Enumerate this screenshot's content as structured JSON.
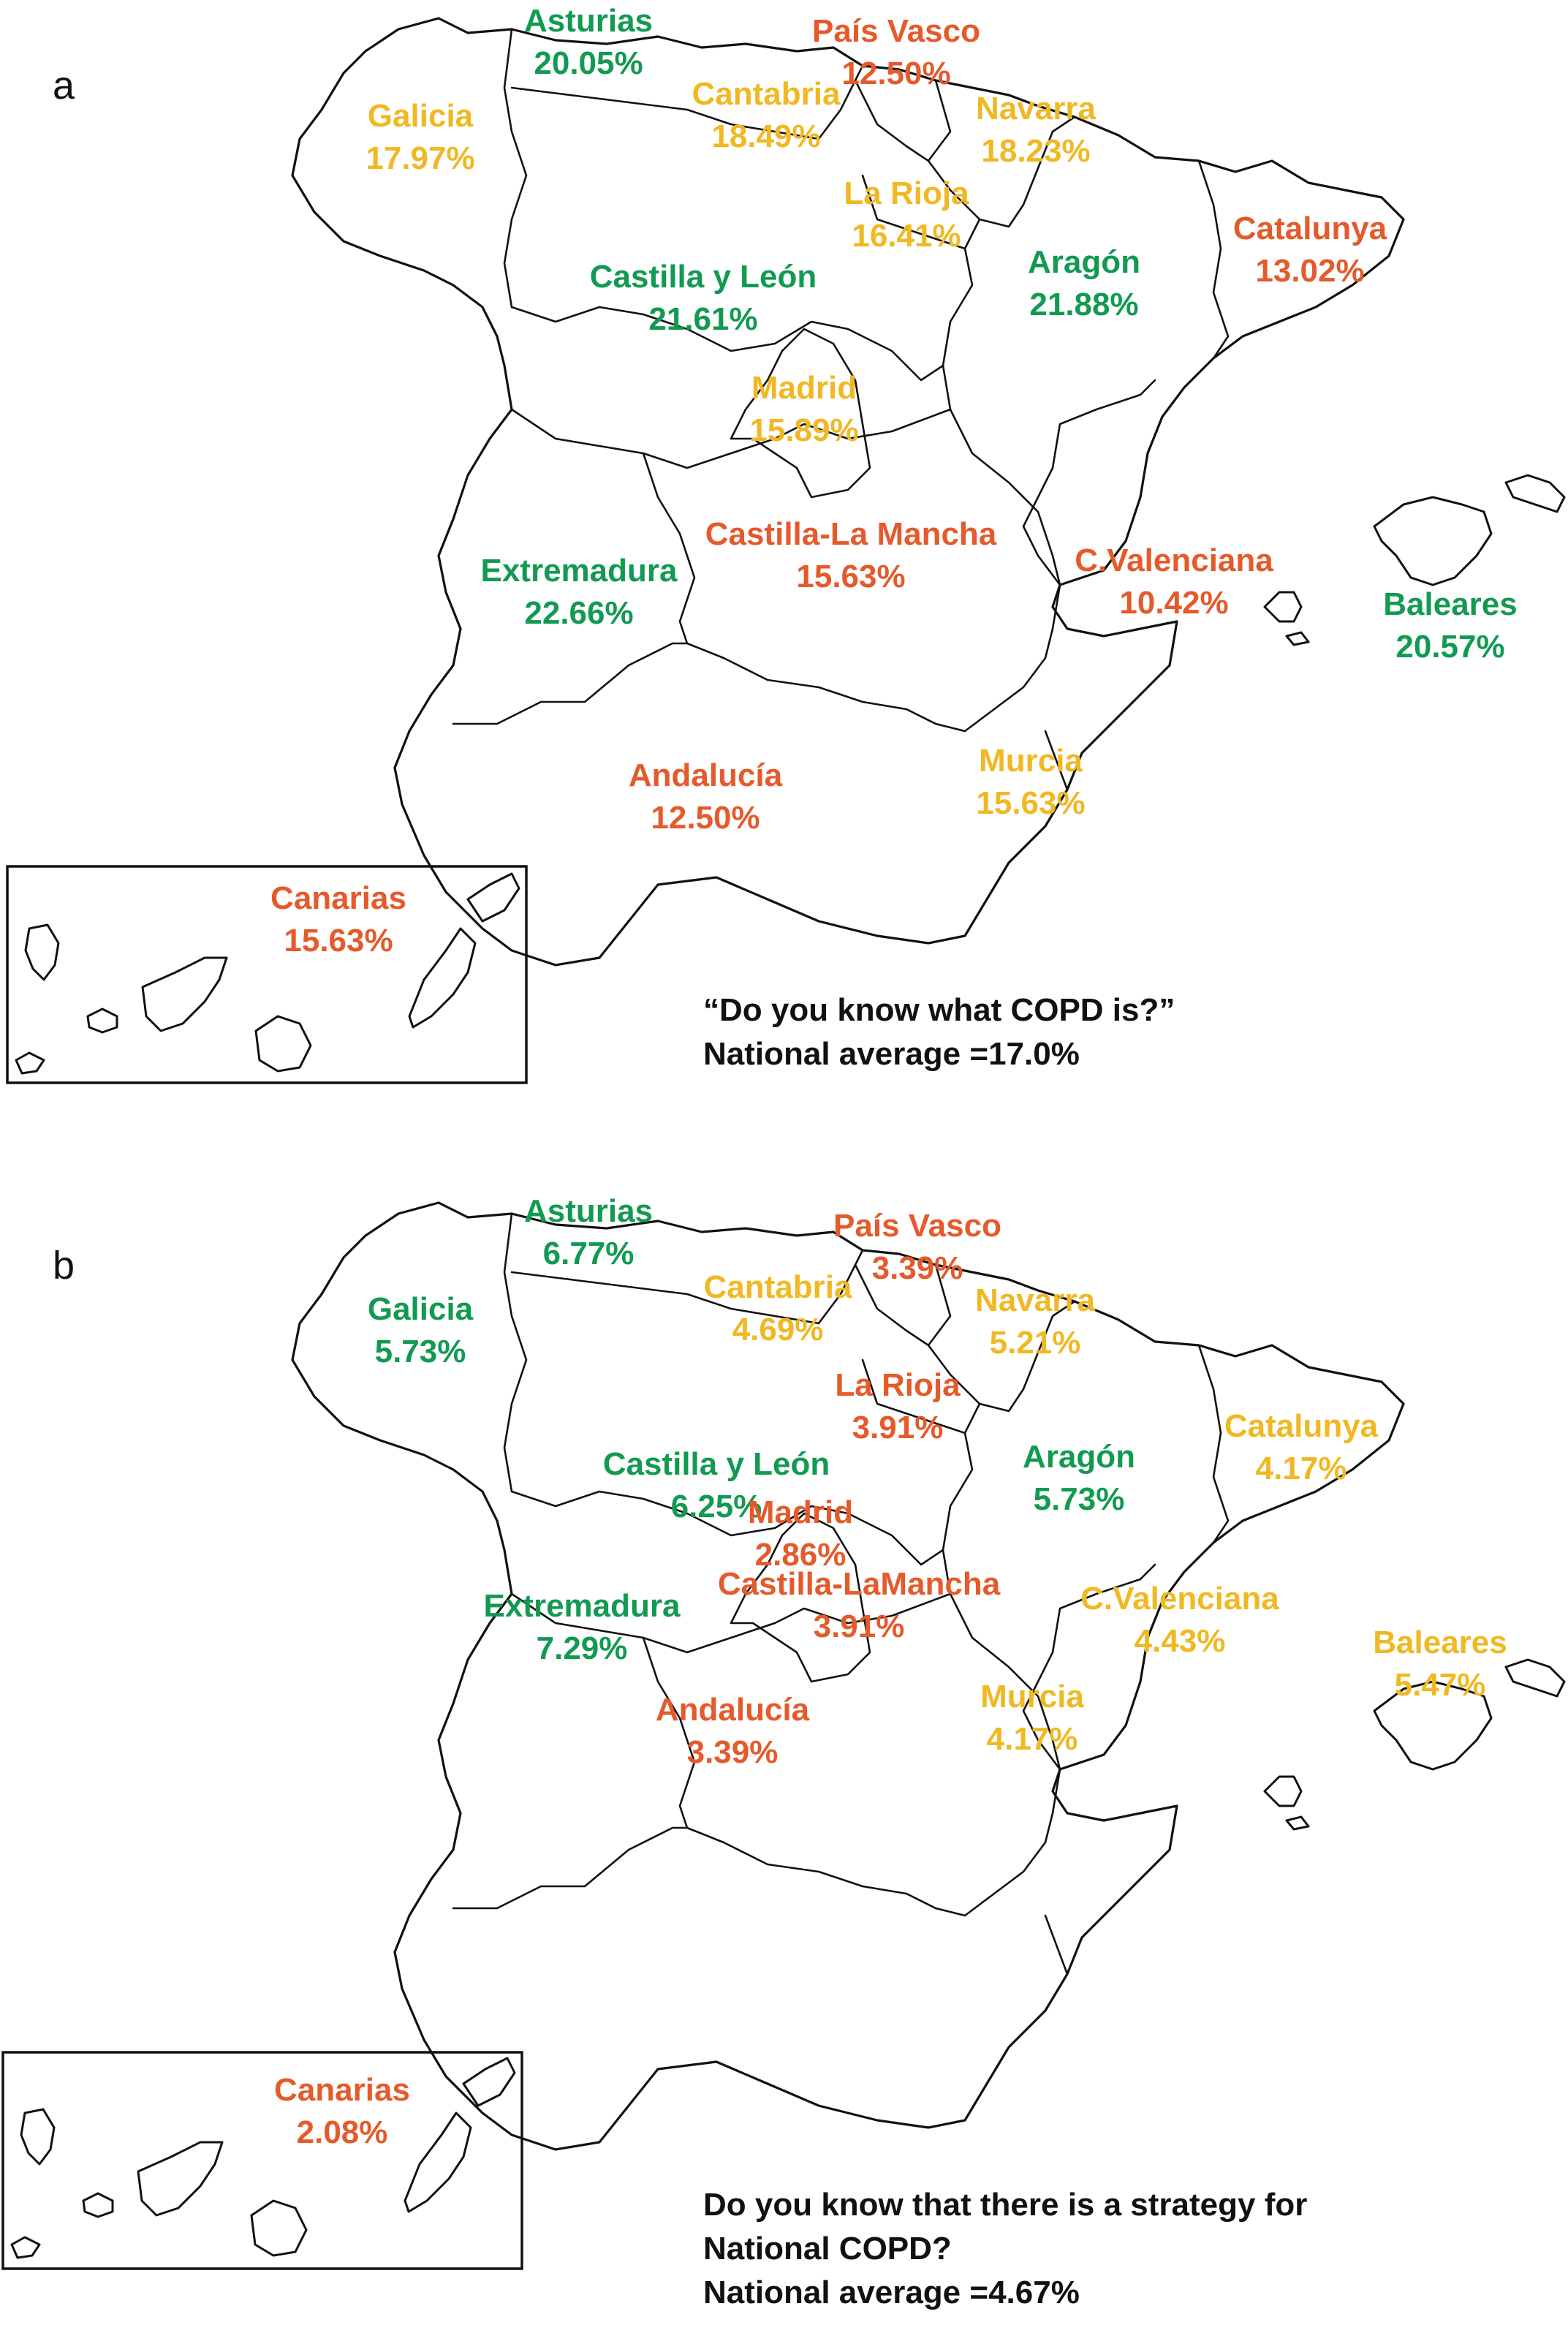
{
  "colors": {
    "green": "#129a52",
    "orange": "#e55a2b",
    "yellow": "#f0b823",
    "outline": "#111111"
  },
  "panel_a": {
    "letter": "a",
    "question": "“Do you know what COPD is?”",
    "national_average": "National average =17.0%",
    "regions": {
      "asturias": {
        "name": "Asturias",
        "value": "20.05%",
        "color": "green"
      },
      "pais_vasco": {
        "name": "País Vasco",
        "value": "12.50%",
        "color": "orange"
      },
      "galicia": {
        "name": "Galicia",
        "value": "17.97%",
        "color": "yellow"
      },
      "cantabria": {
        "name": "Cantabria",
        "value": "18.49%",
        "color": "yellow"
      },
      "navarra": {
        "name": "Navarra",
        "value": "18.23%",
        "color": "yellow"
      },
      "la_rioja": {
        "name": "La Rioja",
        "value": "16.41%",
        "color": "yellow"
      },
      "castilla_leon": {
        "name": "Castilla y León",
        "value": "21.61%",
        "color": "green"
      },
      "aragon": {
        "name": "Aragón",
        "value": "21.88%",
        "color": "green"
      },
      "catalunya": {
        "name": "Catalunya",
        "value": "13.02%",
        "color": "orange"
      },
      "madrid": {
        "name": "Madrid",
        "value": "15.89%",
        "color": "yellow"
      },
      "extremadura": {
        "name": "Extremadura",
        "value": "22.66%",
        "color": "green"
      },
      "castilla_la_mancha": {
        "name": "Castilla-La Mancha",
        "value": "15.63%",
        "color": "orange"
      },
      "c_valenciana": {
        "name": "C.Valenciana",
        "value": "10.42%",
        "color": "orange"
      },
      "baleares": {
        "name": "Baleares",
        "value": "20.57%",
        "color": "green"
      },
      "andalucia": {
        "name": "Andalucía",
        "value": "12.50%",
        "color": "orange"
      },
      "murcia": {
        "name": "Murcia",
        "value": "15.63%",
        "color": "yellow"
      },
      "canarias": {
        "name": "Canarias",
        "value": "15.63%",
        "color": "orange"
      }
    }
  },
  "panel_b": {
    "letter": "b",
    "question_line1": "Do you know that there is a strategy for",
    "question_line2": "National COPD?",
    "national_average": "National average =4.67%",
    "regions": {
      "asturias": {
        "name": "Asturias",
        "value": "6.77%",
        "color": "green"
      },
      "pais_vasco": {
        "name": "País Vasco",
        "value": "3.39%",
        "color": "orange"
      },
      "galicia": {
        "name": "Galicia",
        "value": "5.73%",
        "color": "green"
      },
      "cantabria": {
        "name": "Cantabria",
        "value": "4.69%",
        "color": "yellow"
      },
      "navarra": {
        "name": "Navarra",
        "value": "5.21%",
        "color": "yellow"
      },
      "la_rioja": {
        "name": "La Rioja",
        "value": "3.91%",
        "color": "orange"
      },
      "castilla_leon": {
        "name": "Castilla y León",
        "value": "6.25%",
        "color": "green"
      },
      "aragon": {
        "name": "Aragón",
        "value": "5.73%",
        "color": "green"
      },
      "catalunya": {
        "name": "Catalunya",
        "value": "4.17%",
        "color": "yellow"
      },
      "madrid": {
        "name": "Madrid",
        "value": "2.86%",
        "color": "orange"
      },
      "extremadura": {
        "name": "Extremadura",
        "value": "7.29%",
        "color": "green"
      },
      "castilla_la_mancha": {
        "name": "Castilla-LaMancha",
        "value": "3.91%",
        "color": "orange"
      },
      "c_valenciana": {
        "name": "C.Valenciana",
        "value": "4.43%",
        "color": "yellow"
      },
      "baleares": {
        "name": "Baleares",
        "value": "5.47%",
        "color": "yellow"
      },
      "andalucia": {
        "name": "Andalucía",
        "value": "3.39%",
        "color": "orange"
      },
      "murcia": {
        "name": "Murcia",
        "value": "4.17%",
        "color": "yellow"
      },
      "canarias": {
        "name": "Canarias",
        "value": "2.08%",
        "color": "orange"
      }
    }
  }
}
